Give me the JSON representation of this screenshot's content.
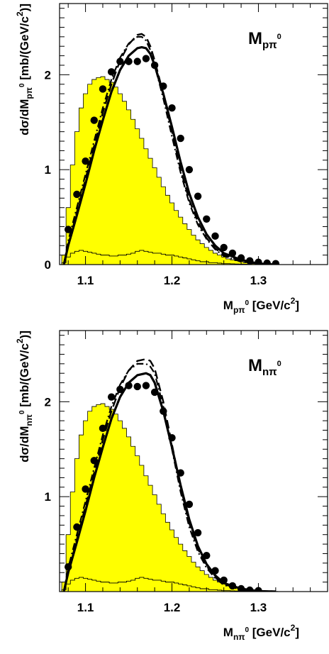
{
  "chart_data": [
    {
      "type": "line",
      "panel_label": {
        "main": "M",
        "sub": "pπ",
        "sup": "0"
      },
      "xlabel": {
        "main": "M",
        "sub": "pπ",
        "sup": "0",
        "rest": " [GeV/c",
        "rest_sup": "2",
        "end": "]"
      },
      "ylabel": {
        "pre": "dσ/dM",
        "sub": "pπ",
        "sup": "0",
        "rest": "  [mb/(GeV/c",
        "rest_sup": "2",
        "end": ")]"
      },
      "xlim": [
        1.07,
        1.38
      ],
      "ylim": [
        0,
        2.75
      ],
      "xticks": [
        "1.1",
        "1.2",
        "1.3"
      ],
      "yticks": [
        "0",
        "1",
        "2"
      ],
      "grid": false,
      "series": [
        {
          "style": "histogram-filled",
          "color": "#ffff00",
          "x": [
            1.075,
            1.08,
            1.085,
            1.09,
            1.095,
            1.1,
            1.105,
            1.11,
            1.115,
            1.12,
            1.125,
            1.13,
            1.135,
            1.14,
            1.145,
            1.15,
            1.155,
            1.16,
            1.165,
            1.17,
            1.175,
            1.18,
            1.185,
            1.19,
            1.195,
            1.2,
            1.205,
            1.21,
            1.215,
            1.22,
            1.225,
            1.23,
            1.235,
            1.24,
            1.245,
            1.25,
            1.255,
            1.26,
            1.265,
            1.27,
            1.275,
            1.28,
            1.285,
            1.29,
            1.295,
            1.3,
            1.305,
            1.31,
            1.315,
            1.32,
            1.325,
            1.33
          ],
          "y": [
            0.1,
            0.6,
            1.05,
            1.4,
            1.65,
            1.8,
            1.9,
            1.95,
            1.97,
            1.98,
            1.95,
            1.92,
            1.87,
            1.8,
            1.72,
            1.63,
            1.53,
            1.43,
            1.33,
            1.22,
            1.12,
            1.02,
            0.92,
            0.82,
            0.73,
            0.65,
            0.57,
            0.5,
            0.43,
            0.37,
            0.31,
            0.26,
            0.22,
            0.18,
            0.15,
            0.12,
            0.1,
            0.08,
            0.06,
            0.05,
            0.04,
            0.03,
            0.02,
            0.015,
            0.01,
            0.008,
            0.006,
            0.004,
            0.003,
            0.002,
            0.001,
            0.0
          ]
        },
        {
          "style": "histogram-thin",
          "x": [
            1.075,
            1.08,
            1.085,
            1.09,
            1.095,
            1.1,
            1.105,
            1.11,
            1.115,
            1.12,
            1.125,
            1.13,
            1.135,
            1.14,
            1.145,
            1.15,
            1.155,
            1.16,
            1.165,
            1.17,
            1.175,
            1.18,
            1.185,
            1.19,
            1.195,
            1.2,
            1.205,
            1.21,
            1.215,
            1.22,
            1.225,
            1.23,
            1.235,
            1.24,
            1.245,
            1.25,
            1.255,
            1.26,
            1.265,
            1.27,
            1.275,
            1.28,
            1.285,
            1.29,
            1.295,
            1.3,
            1.305,
            1.31,
            1.315,
            1.32,
            1.325,
            1.33
          ],
          "y": [
            0.02,
            0.08,
            0.12,
            0.14,
            0.15,
            0.14,
            0.13,
            0.12,
            0.11,
            0.1,
            0.1,
            0.09,
            0.09,
            0.1,
            0.1,
            0.11,
            0.12,
            0.14,
            0.15,
            0.14,
            0.13,
            0.12,
            0.12,
            0.11,
            0.1,
            0.1,
            0.09,
            0.08,
            0.07,
            0.06,
            0.05,
            0.04,
            0.03,
            0.03,
            0.02,
            0.02,
            0.015,
            0.01,
            0.01,
            0.008,
            0.006,
            0.005,
            0.004,
            0.003,
            0.002,
            0.002,
            0.001,
            0.001,
            0.0,
            0.0,
            0.0,
            0.0
          ]
        },
        {
          "style": "dashed",
          "x": [
            1.075,
            1.08,
            1.09,
            1.1,
            1.11,
            1.12,
            1.13,
            1.14,
            1.15,
            1.16,
            1.165,
            1.17,
            1.175,
            1.18,
            1.19,
            1.2,
            1.21,
            1.22,
            1.23,
            1.24,
            1.25,
            1.26,
            1.28,
            1.3,
            1.32
          ],
          "y": [
            0,
            0.2,
            0.55,
            0.9,
            1.25,
            1.6,
            1.9,
            2.15,
            2.32,
            2.42,
            2.43,
            2.4,
            2.3,
            2.15,
            1.8,
            1.4,
            1.0,
            0.68,
            0.45,
            0.28,
            0.17,
            0.1,
            0.04,
            0.01,
            0
          ]
        },
        {
          "style": "dashdot",
          "x": [
            1.075,
            1.08,
            1.09,
            1.1,
            1.11,
            1.12,
            1.13,
            1.14,
            1.15,
            1.16,
            1.165,
            1.17,
            1.175,
            1.18,
            1.19,
            1.2,
            1.21,
            1.22,
            1.23,
            1.24,
            1.25,
            1.26,
            1.28,
            1.3,
            1.32
          ],
          "y": [
            0,
            0.25,
            0.6,
            0.95,
            1.3,
            1.65,
            1.95,
            2.18,
            2.33,
            2.4,
            2.4,
            2.36,
            2.26,
            2.1,
            1.75,
            1.35,
            0.97,
            0.65,
            0.42,
            0.27,
            0.16,
            0.09,
            0.03,
            0.01,
            0
          ]
        },
        {
          "style": "solid-thick",
          "x": [
            1.075,
            1.08,
            1.09,
            1.1,
            1.11,
            1.12,
            1.13,
            1.14,
            1.15,
            1.16,
            1.165,
            1.17,
            1.175,
            1.18,
            1.19,
            1.2,
            1.21,
            1.22,
            1.23,
            1.24,
            1.25,
            1.26,
            1.28,
            1.3,
            1.32
          ],
          "y": [
            0,
            0.2,
            0.52,
            0.85,
            1.2,
            1.52,
            1.82,
            2.05,
            2.2,
            2.28,
            2.29,
            2.28,
            2.22,
            2.1,
            1.8,
            1.45,
            1.08,
            0.75,
            0.5,
            0.32,
            0.2,
            0.12,
            0.05,
            0.01,
            0
          ]
        },
        {
          "style": "points",
          "x": [
            1.08,
            1.09,
            1.1,
            1.11,
            1.12,
            1.13,
            1.14,
            1.15,
            1.16,
            1.17,
            1.18,
            1.19,
            1.2,
            1.21,
            1.22,
            1.23,
            1.24,
            1.25,
            1.26,
            1.27,
            1.28,
            1.29,
            1.3,
            1.31,
            1.32
          ],
          "y": [
            0.37,
            0.74,
            1.09,
            1.52,
            1.85,
            2.03,
            2.14,
            2.14,
            2.14,
            2.17,
            2.1,
            1.88,
            1.65,
            1.33,
            1.0,
            0.72,
            0.48,
            0.3,
            0.18,
            0.12,
            0.07,
            0.04,
            0.025,
            0.015,
            0.01
          ]
        }
      ]
    },
    {
      "type": "line",
      "panel_label": {
        "main": "M",
        "sub": "nπ",
        "sup": "0"
      },
      "xlabel": {
        "main": "M",
        "sub": "nπ",
        "sup": "0",
        "rest": " [GeV/c",
        "rest_sup": "2",
        "end": "]"
      },
      "ylabel": {
        "pre": "dσ/dM",
        "sub": "nπ",
        "sup": "0",
        "rest": "  [mb/(GeV/c",
        "rest_sup": "2",
        "end": ")]"
      },
      "xlim": [
        1.07,
        1.38
      ],
      "ylim": [
        0,
        2.75
      ],
      "xticks": [
        "1.1",
        "1.2",
        "1.3"
      ],
      "yticks": [
        "1",
        "2"
      ],
      "grid": false,
      "series": [
        {
          "style": "histogram-filled",
          "color": "#ffff00",
          "x": [
            1.075,
            1.08,
            1.085,
            1.09,
            1.095,
            1.1,
            1.105,
            1.11,
            1.115,
            1.12,
            1.125,
            1.13,
            1.135,
            1.14,
            1.145,
            1.15,
            1.155,
            1.16,
            1.165,
            1.17,
            1.175,
            1.18,
            1.185,
            1.19,
            1.195,
            1.2,
            1.205,
            1.21,
            1.215,
            1.22,
            1.225,
            1.23,
            1.235,
            1.24,
            1.245,
            1.25,
            1.255,
            1.26,
            1.265,
            1.27,
            1.275,
            1.28,
            1.285,
            1.29,
            1.295,
            1.3,
            1.305,
            1.31,
            1.315,
            1.32,
            1.325,
            1.33
          ],
          "y": [
            0.1,
            0.6,
            1.05,
            1.4,
            1.65,
            1.8,
            1.9,
            1.95,
            1.97,
            1.98,
            1.95,
            1.92,
            1.87,
            1.8,
            1.72,
            1.63,
            1.53,
            1.43,
            1.33,
            1.22,
            1.12,
            1.02,
            0.92,
            0.82,
            0.73,
            0.65,
            0.57,
            0.5,
            0.43,
            0.37,
            0.31,
            0.26,
            0.22,
            0.18,
            0.15,
            0.12,
            0.1,
            0.08,
            0.06,
            0.05,
            0.04,
            0.03,
            0.02,
            0.015,
            0.01,
            0.008,
            0.006,
            0.004,
            0.003,
            0.002,
            0.001,
            0.0
          ]
        },
        {
          "style": "histogram-thin",
          "x": [
            1.075,
            1.08,
            1.085,
            1.09,
            1.095,
            1.1,
            1.105,
            1.11,
            1.115,
            1.12,
            1.125,
            1.13,
            1.135,
            1.14,
            1.145,
            1.15,
            1.155,
            1.16,
            1.165,
            1.17,
            1.175,
            1.18,
            1.185,
            1.19,
            1.195,
            1.2,
            1.205,
            1.21,
            1.215,
            1.22,
            1.225,
            1.23,
            1.235,
            1.24,
            1.245,
            1.25,
            1.255,
            1.26,
            1.265,
            1.27,
            1.275,
            1.28,
            1.285,
            1.29,
            1.295,
            1.3,
            1.305,
            1.31,
            1.315,
            1.32,
            1.325,
            1.33
          ],
          "y": [
            0.02,
            0.08,
            0.12,
            0.14,
            0.15,
            0.14,
            0.13,
            0.12,
            0.11,
            0.1,
            0.1,
            0.09,
            0.09,
            0.1,
            0.1,
            0.11,
            0.12,
            0.14,
            0.15,
            0.14,
            0.13,
            0.12,
            0.12,
            0.11,
            0.1,
            0.1,
            0.09,
            0.08,
            0.07,
            0.06,
            0.05,
            0.04,
            0.03,
            0.03,
            0.02,
            0.02,
            0.015,
            0.01,
            0.01,
            0.008,
            0.006,
            0.005,
            0.004,
            0.003,
            0.002,
            0.002,
            0.001,
            0.001,
            0.0,
            0.0,
            0.0,
            0.0
          ]
        },
        {
          "style": "dashed",
          "x": [
            1.075,
            1.08,
            1.09,
            1.1,
            1.11,
            1.12,
            1.13,
            1.14,
            1.15,
            1.16,
            1.17,
            1.175,
            1.18,
            1.19,
            1.2,
            1.21,
            1.22,
            1.23,
            1.24,
            1.25,
            1.26,
            1.28,
            1.3,
            1.32
          ],
          "y": [
            0,
            0.2,
            0.55,
            0.9,
            1.25,
            1.6,
            1.9,
            2.15,
            2.33,
            2.43,
            2.45,
            2.43,
            2.35,
            2.0,
            1.55,
            1.1,
            0.72,
            0.45,
            0.27,
            0.15,
            0.08,
            0.02,
            0.005,
            0
          ]
        },
        {
          "style": "dashdot",
          "x": [
            1.075,
            1.08,
            1.09,
            1.1,
            1.11,
            1.12,
            1.13,
            1.14,
            1.15,
            1.16,
            1.17,
            1.175,
            1.18,
            1.19,
            1.2,
            1.21,
            1.22,
            1.23,
            1.24,
            1.25,
            1.26,
            1.28,
            1.3,
            1.32
          ],
          "y": [
            0,
            0.25,
            0.6,
            0.95,
            1.3,
            1.65,
            1.95,
            2.18,
            2.33,
            2.4,
            2.4,
            2.37,
            2.3,
            1.95,
            1.5,
            1.05,
            0.68,
            0.42,
            0.25,
            0.14,
            0.07,
            0.02,
            0.005,
            0
          ]
        },
        {
          "style": "solid-thick",
          "x": [
            1.075,
            1.08,
            1.09,
            1.1,
            1.11,
            1.12,
            1.13,
            1.14,
            1.15,
            1.16,
            1.17,
            1.175,
            1.18,
            1.19,
            1.2,
            1.21,
            1.22,
            1.23,
            1.24,
            1.25,
            1.26,
            1.28,
            1.3,
            1.32
          ],
          "y": [
            0,
            0.2,
            0.52,
            0.85,
            1.2,
            1.52,
            1.82,
            2.05,
            2.2,
            2.28,
            2.3,
            2.28,
            2.2,
            1.9,
            1.52,
            1.12,
            0.76,
            0.48,
            0.29,
            0.17,
            0.09,
            0.03,
            0.005,
            0
          ]
        },
        {
          "style": "points",
          "x": [
            1.08,
            1.09,
            1.1,
            1.11,
            1.12,
            1.13,
            1.14,
            1.15,
            1.16,
            1.17,
            1.18,
            1.19,
            1.2,
            1.21,
            1.22,
            1.23,
            1.24,
            1.25,
            1.26,
            1.27,
            1.28,
            1.29,
            1.3
          ],
          "y": [
            0.26,
            0.68,
            1.08,
            1.38,
            1.72,
            2.05,
            2.13,
            2.17,
            2.16,
            2.17,
            2.1,
            1.9,
            1.62,
            1.25,
            0.92,
            0.62,
            0.38,
            0.22,
            0.12,
            0.06,
            0.03,
            0.015,
            0.01
          ]
        }
      ]
    }
  ]
}
